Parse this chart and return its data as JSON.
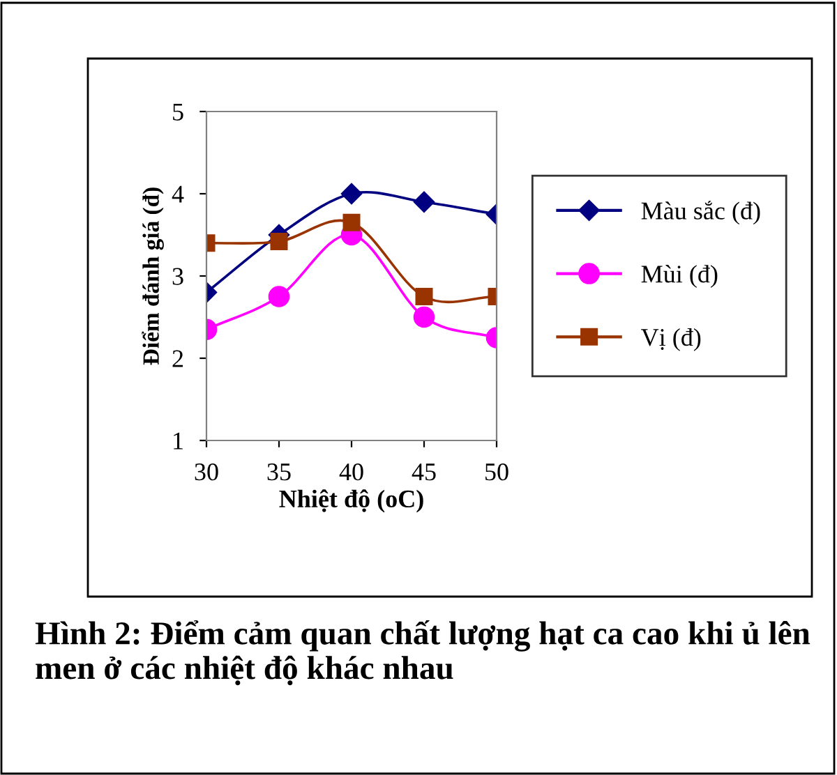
{
  "chart_data": {
    "type": "line",
    "xlabel": "Nhiệt độ (oC)",
    "ylabel": "Điểm đánh giá (đ)",
    "x": [
      30,
      35,
      40,
      45,
      50
    ],
    "xlim": [
      30,
      50
    ],
    "xticks": [
      30,
      35,
      40,
      45,
      50
    ],
    "ylim": [
      1,
      5
    ],
    "yticks": [
      1,
      2,
      3,
      4,
      5
    ],
    "series": [
      {
        "name": "Màu sắc (đ)",
        "color": "#000080",
        "marker": "diamond",
        "values": [
          2.8,
          3.5,
          4.0,
          3.9,
          3.75
        ]
      },
      {
        "name": "Mùi (đ)",
        "color": "#ff00ff",
        "marker": "circle",
        "values": [
          2.35,
          2.75,
          3.5,
          2.5,
          2.25
        ]
      },
      {
        "name": "Vị (đ)",
        "color": "#993300",
        "marker": "square",
        "values": [
          3.4,
          3.42,
          3.65,
          2.75,
          2.75
        ]
      }
    ],
    "legend": "right",
    "grid": false,
    "line_style": "solid",
    "annotations": [
      "Hình 2: Điểm cảm quan chất lượng hạt ca cao khi ủ lên men ở các nhiệt độ khác nhau"
    ]
  }
}
